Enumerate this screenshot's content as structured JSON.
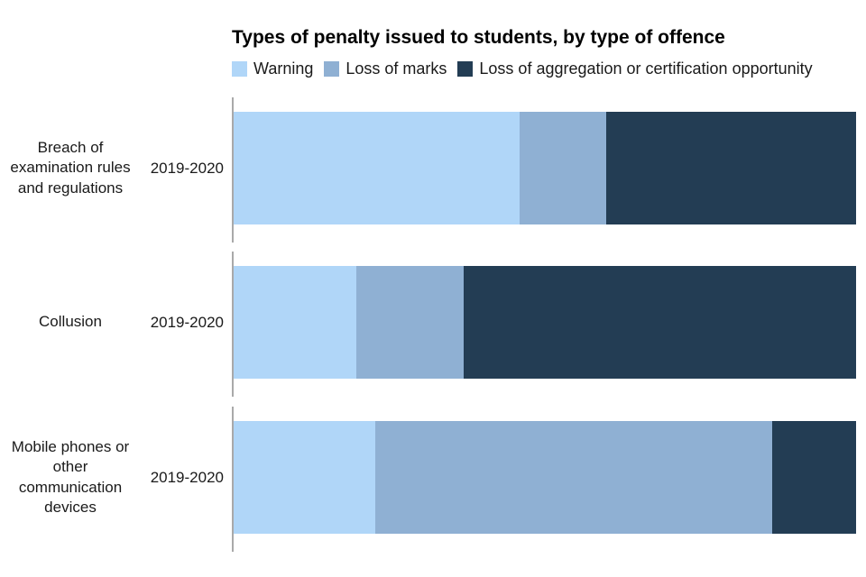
{
  "title": "Types of penalty issued to students, by type of offence",
  "legend": {
    "items": [
      "Warning",
      "Loss of marks",
      "Loss of aggregation or certification opportunity"
    ]
  },
  "chart_data": {
    "type": "bar",
    "orientation": "horizontal",
    "stacked": true,
    "title": "Types of penalty issued to students, by type of offence",
    "xlabel": "",
    "ylabel": "",
    "xlim": [
      0,
      100
    ],
    "grid": false,
    "legend_position": "top",
    "value_unit": "percent share of bar (estimated from pixels; no numeric axis shown)",
    "categories": [
      "Breach of examination rules and regulations",
      "Collusion",
      "Mobile phones or other communication devices"
    ],
    "x": [
      "2019-2020",
      "2019-2020",
      "2019-2020"
    ],
    "series": [
      {
        "name": "Warning",
        "color": "#b0d6f8",
        "values": [
          45.9,
          19.7,
          22.7
        ]
      },
      {
        "name": "Loss of marks",
        "color": "#8fb0d3",
        "values": [
          13.9,
          17.2,
          63.8
        ]
      },
      {
        "name": "Loss of aggregation or certification opportunity",
        "color": "#233d54",
        "values": [
          40.2,
          63.1,
          13.5
        ]
      }
    ],
    "colors": {
      "warning": "#b0d6f8",
      "loss_of_marks": "#8fb0d3",
      "loss_of_aggregation_or_certification_opportunity": "#233d54",
      "axis_line": "#a9a9a9",
      "text": "#1a1a1a",
      "background": "#ffffff"
    }
  }
}
